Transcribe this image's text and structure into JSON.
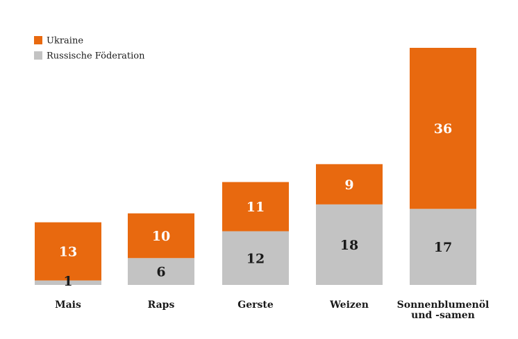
{
  "chart_data": {
    "type": "bar",
    "stacked": true,
    "categories": [
      [
        "Mais"
      ],
      [
        "Raps"
      ],
      [
        "Gerste"
      ],
      [
        "Weizen"
      ],
      [
        "Sonnenblumenöl",
        "und -samen"
      ]
    ],
    "series": [
      {
        "name": "Russische Föderation",
        "values": [
          1,
          6,
          12,
          18,
          17
        ],
        "color": "#c3c3c3",
        "label_color": "#1a1a1a"
      },
      {
        "name": "Ukraine",
        "values": [
          13,
          10,
          11,
          9,
          36
        ],
        "color": "#e8690f",
        "label_color": "#ffffff"
      }
    ],
    "legend": {
      "position": "top-left",
      "order": [
        "Ukraine",
        "Russische Föderation"
      ]
    },
    "ylim": [
      0,
      53
    ],
    "grid": false,
    "title": "",
    "xlabel": "",
    "ylabel": ""
  }
}
